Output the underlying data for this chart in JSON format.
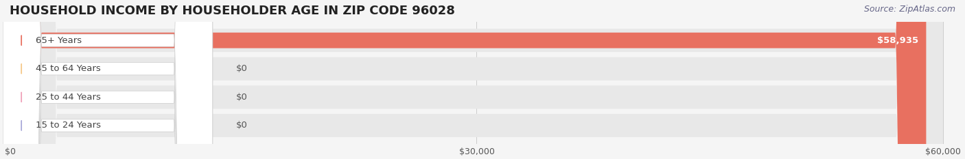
{
  "title": "HOUSEHOLD INCOME BY HOUSEHOLDER AGE IN ZIP CODE 96028",
  "source": "Source: ZipAtlas.com",
  "categories": [
    "15 to 24 Years",
    "25 to 44 Years",
    "45 to 64 Years",
    "65+ Years"
  ],
  "values": [
    0,
    0,
    0,
    58935
  ],
  "bar_colors": [
    "#a8a8d8",
    "#f0a0b8",
    "#f5c888",
    "#e87060"
  ],
  "label_colors": [
    "#a8a8d8",
    "#f0a0b8",
    "#f5c888",
    "#ffffff"
  ],
  "bg_color": "#f5f5f5",
  "bar_bg_color": "#e8e8e8",
  "xlim": [
    0,
    60000
  ],
  "xticks": [
    0,
    30000,
    60000
  ],
  "xtick_labels": [
    "$0",
    "$30,000",
    "$60,000"
  ],
  "title_fontsize": 13,
  "label_fontsize": 9.5,
  "tick_fontsize": 9,
  "source_fontsize": 9
}
